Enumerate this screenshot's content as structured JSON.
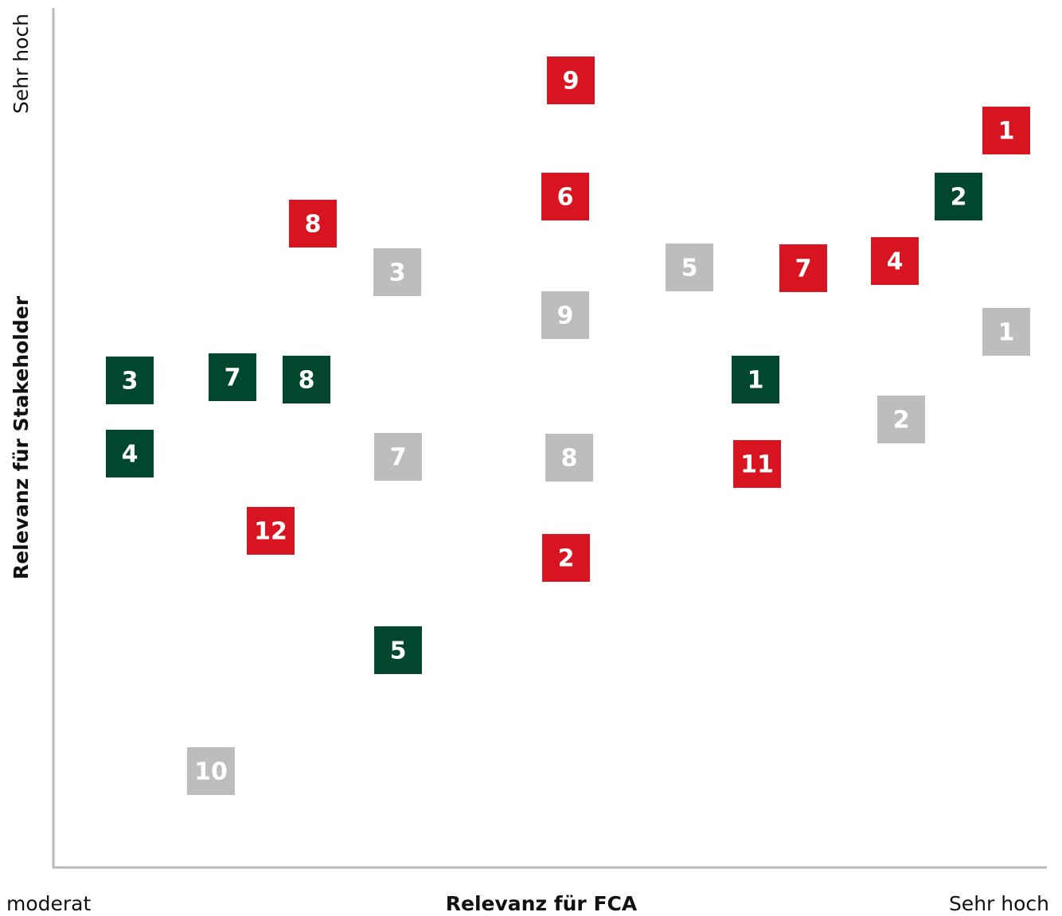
{
  "axes": {
    "x_title": "Relevanz für FCA",
    "x_low": "moderat",
    "x_high": "Sehr hoch",
    "y_title": "Relevanz für Stakeholder",
    "y_high": "Sehr hoch"
  },
  "nodes": [
    {
      "label": "9",
      "color": "#d7141f"
    },
    {
      "label": "1",
      "color": "#d7141f"
    },
    {
      "label": "6",
      "color": "#d7141f"
    },
    {
      "label": "8",
      "color": "#d7141f"
    },
    {
      "label": "7",
      "color": "#d7141f"
    },
    {
      "label": "4",
      "color": "#d7141f"
    },
    {
      "label": "11",
      "color": "#d7141f"
    },
    {
      "label": "12",
      "color": "#d7141f"
    },
    {
      "label": "2",
      "color": "#d7141f"
    },
    {
      "label": "2",
      "color": "#00472d"
    },
    {
      "label": "3",
      "color": "#00472d"
    },
    {
      "label": "7",
      "color": "#00472d"
    },
    {
      "label": "8",
      "color": "#00472d"
    },
    {
      "label": "1",
      "color": "#00472d"
    },
    {
      "label": "4",
      "color": "#00472d"
    },
    {
      "label": "5",
      "color": "#00472d"
    },
    {
      "label": "3",
      "color": "#bdbdbd"
    },
    {
      "label": "5",
      "color": "#bdbdbd"
    },
    {
      "label": "9",
      "color": "#bdbdbd"
    },
    {
      "label": "1",
      "color": "#bdbdbd"
    },
    {
      "label": "2",
      "color": "#bdbdbd"
    },
    {
      "label": "7",
      "color": "#bdbdbd"
    },
    {
      "label": "8",
      "color": "#bdbdbd"
    },
    {
      "label": "10",
      "color": "#bdbdbd"
    }
  ]
}
